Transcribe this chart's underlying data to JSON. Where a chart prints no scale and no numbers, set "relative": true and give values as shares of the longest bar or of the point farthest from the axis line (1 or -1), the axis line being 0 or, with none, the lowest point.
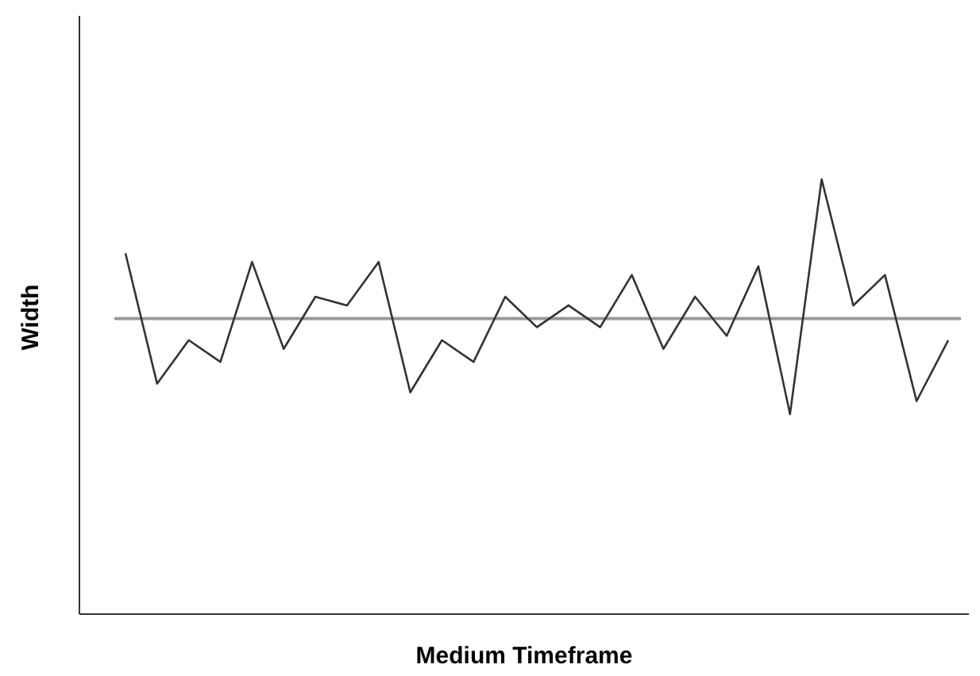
{
  "chart_data": {
    "type": "line",
    "xlabel": "Medium Timeframe",
    "ylabel": "Width",
    "relative": true,
    "categories": [
      null,
      null,
      null,
      null,
      null,
      null,
      null,
      null,
      null,
      null,
      null,
      null,
      null,
      null,
      null,
      null,
      null,
      null,
      null,
      null,
      null,
      null,
      null,
      null,
      null,
      null,
      null
    ],
    "series": [
      {
        "color": "#333333",
        "values": [
          0.83,
          0.53,
          0.63,
          0.58,
          0.81,
          0.61,
          0.73,
          0.71,
          0.81,
          0.51,
          0.63,
          0.58,
          0.73,
          0.66,
          0.71,
          0.66,
          0.78,
          0.61,
          0.73,
          0.64,
          0.8,
          0.46,
          1,
          0.71,
          0.78,
          0.49,
          0.63
        ]
      }
    ],
    "ref_lines": [
      {
        "axis": "y",
        "value": 0.68,
        "color": "#999999"
      }
    ]
  }
}
